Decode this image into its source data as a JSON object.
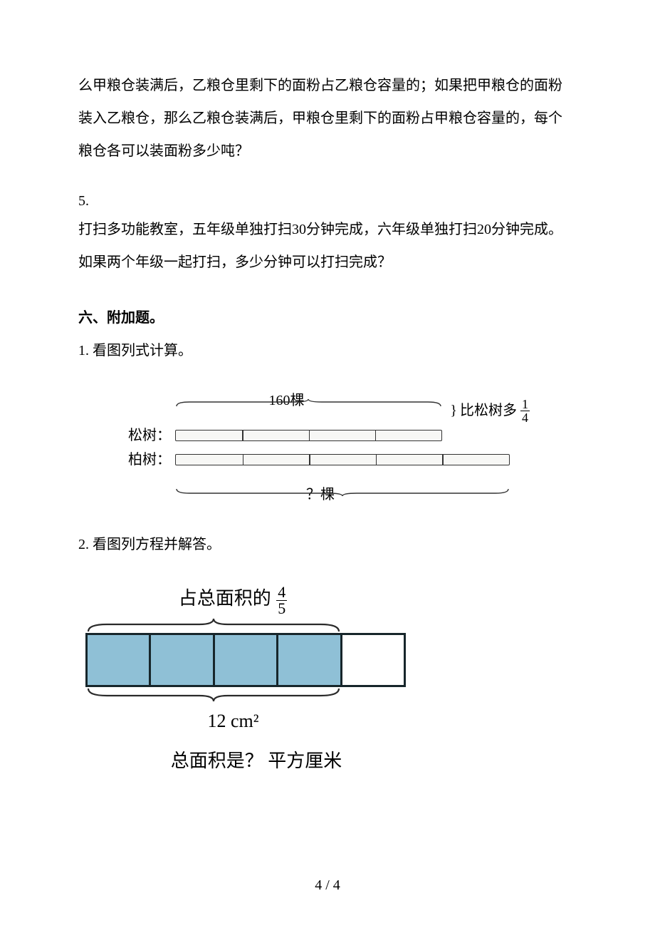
{
  "continuation": {
    "line1": "么甲粮仓装满后，乙粮仓里剩下的面粉占乙粮仓容量的；如果把甲粮仓的面粉",
    "line2": "装入乙粮仓，那么乙粮仓装满后，甲粮仓里剩下的面粉占甲粮仓容量的，每个",
    "line3": "粮仓各可以装面粉多少吨？"
  },
  "q5": {
    "number": "5.",
    "line1": "打扫多功能教室，五年级单独打扫30分钟完成，六年级单独打扫20分钟完成。",
    "line2": "如果两个年级一起打扫，多少分钟可以打扫完成？"
  },
  "section6": {
    "header": "六、附加题。",
    "item1_label": "1.  看图列式计算。",
    "item2_label": "2.  看图列方程并解答。"
  },
  "fig1": {
    "top_label": "160棵",
    "row1_label": "松树：",
    "row2_label": "柏树：",
    "right_note_text": "比松树多",
    "right_note_frac_num": "1",
    "right_note_frac_den": "4",
    "bottom_label": "？棵",
    "ticks_top": [
      25,
      50,
      75
    ],
    "ticks_bot": [
      20,
      40,
      60,
      80
    ],
    "brace_color": "#333333",
    "bar_border_color": "#333333"
  },
  "fig2": {
    "top_text": "占总面积的",
    "top_frac_num": "4",
    "top_frac_den": "5",
    "mid_label": "12 cm²",
    "bottom_text": "总面积是？ 平方厘米",
    "n_boxes": 5,
    "n_filled": 4,
    "fill_color": "#8fc0d6",
    "border_color": "#17262b",
    "brace_color": "#2a2a2a"
  },
  "page_num": "4 / 4"
}
